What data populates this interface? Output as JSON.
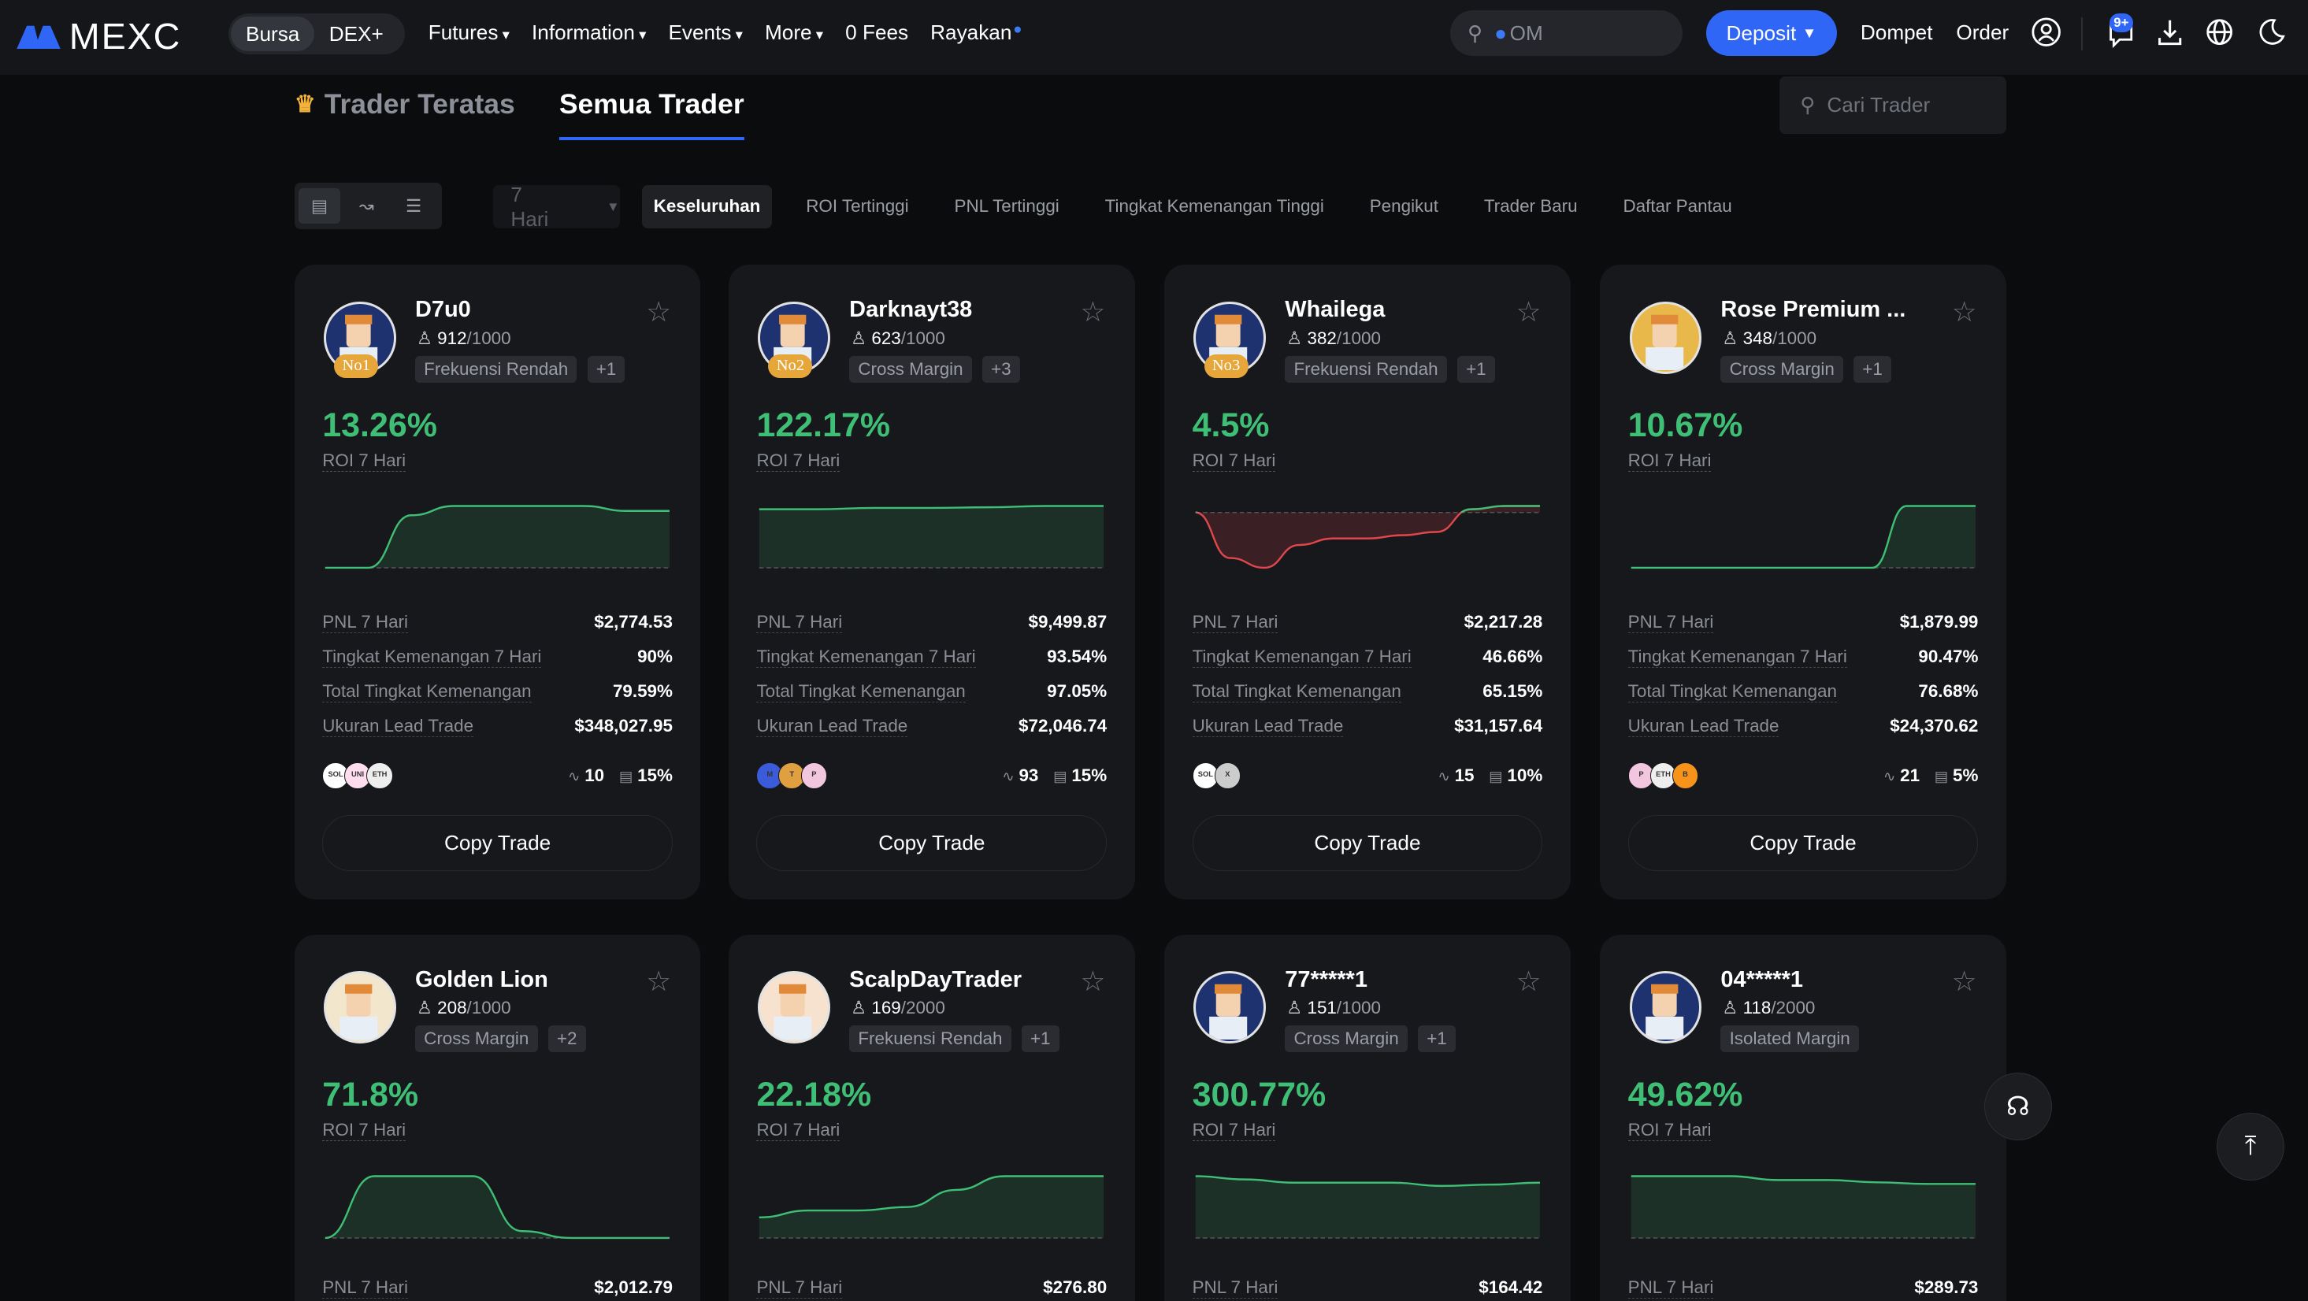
{
  "nav": {
    "logo": "MEXC",
    "seg": [
      "Bursa",
      "DEX+"
    ],
    "menu": [
      {
        "label": "Futures",
        "caret": true
      },
      {
        "label": "Information",
        "caret": true
      },
      {
        "label": "Events",
        "caret": true
      },
      {
        "label": "More",
        "caret": true
      },
      {
        "label": "0 Fees",
        "caret": false
      },
      {
        "label": "Rayakan",
        "caret": false
      }
    ],
    "search_value": "OM",
    "deposit": "Deposit",
    "wallet": "Dompet",
    "order": "Order",
    "notif_badge": "9+"
  },
  "tabs": {
    "top": "Trader Teratas",
    "all": "Semua Trader"
  },
  "search_placeholder": "Cari Trader",
  "period": "7 Hari",
  "filters": [
    "Keseluruhan",
    "ROI Tertinggi",
    "PNL Tertinggi",
    "Tingkat Kemenangan Tinggi",
    "Pengikut",
    "Trader Baru",
    "Daftar Pantau"
  ],
  "stat_labels": [
    "PNL 7 Hari",
    "Tingkat Kemenangan 7 Hari",
    "Total Tingkat Kemenangan",
    "Ukuran Lead Trade"
  ],
  "roi_label": "ROI 7 Hari",
  "copy_label": "Copy Trade",
  "colors": {
    "accent": "#2f66f5",
    "positive": "#3fbf75",
    "negative": "#e0474c"
  },
  "cards": [
    {
      "name": "D7u0",
      "rank": "No1",
      "followers": "912",
      "cap": "/1000",
      "tags": [
        "Frekuensi Rendah",
        "+1"
      ],
      "roi": "13.26%",
      "stats": [
        "$2,774.53",
        "90%",
        "79.59%",
        "$348,027.95"
      ],
      "coins": [
        "SOL",
        "UNI",
        "ETH"
      ],
      "trades": "10",
      "share": "15%",
      "spark": [
        0,
        0,
        0.85,
        1,
        1,
        1,
        1,
        0.92,
        0.92
      ]
    },
    {
      "name": "Darknayt38",
      "rank": "No2",
      "followers": "623",
      "cap": "/1000",
      "tags": [
        "Cross Margin",
        "+3"
      ],
      "roi": "122.17%",
      "stats": [
        "$9,499.87",
        "93.54%",
        "97.05%",
        "$72,046.74"
      ],
      "coins": [
        "M",
        "T",
        "P"
      ],
      "trades": "93",
      "share": "15%",
      "spark": [
        0.9,
        0.9,
        0.92,
        0.92,
        0.93,
        0.95,
        0.95
      ]
    },
    {
      "name": "Whailega",
      "rank": "No3",
      "followers": "382",
      "cap": "/1000",
      "tags": [
        "Frekuensi Rendah",
        "+1"
      ],
      "roi": "4.5%",
      "stats": [
        "$2,217.28",
        "46.66%",
        "65.15%",
        "$31,157.64"
      ],
      "coins": [
        "SOL",
        "X"
      ],
      "trades": "15",
      "share": "10%",
      "spark": [
        0,
        -0.7,
        -0.85,
        -0.5,
        -0.4,
        -0.4,
        -0.35,
        -0.3,
        0.05,
        0.1,
        0.1
      ]
    },
    {
      "name": "Rose Premium ...",
      "rank": "",
      "followers": "348",
      "cap": "/1000",
      "tags": [
        "Cross Margin",
        "+1"
      ],
      "roi": "10.67%",
      "stats": [
        "$1,879.99",
        "90.47%",
        "76.68%",
        "$24,370.62"
      ],
      "coins": [
        "P",
        "ETH",
        "B"
      ],
      "trades": "21",
      "share": "5%",
      "spark": [
        0,
        0,
        0,
        0,
        0,
        0,
        0,
        0,
        1,
        1,
        1
      ]
    },
    {
      "name": "Golden Lion",
      "rank": "",
      "followers": "208",
      "cap": "/1000",
      "tags": [
        "Cross Margin",
        "+2"
      ],
      "roi": "71.8%",
      "stats": [
        "$2,012.79"
      ],
      "spark": [
        0,
        0.9,
        0.9,
        0.9,
        0.1,
        0,
        0,
        0
      ]
    },
    {
      "name": "ScalpDayTrader",
      "rank": "",
      "followers": "169",
      "cap": "/2000",
      "tags": [
        "Frekuensi Rendah",
        "+1"
      ],
      "roi": "22.18%",
      "stats": [
        "$276.80"
      ],
      "spark": [
        0.3,
        0.4,
        0.4,
        0.45,
        0.7,
        0.9,
        0.9,
        0.9
      ]
    },
    {
      "name": "77*****1",
      "rank": "",
      "followers": "151",
      "cap": "/1000",
      "tags": [
        "Cross Margin",
        "+1"
      ],
      "roi": "300.77%",
      "stats": [
        "$164.42"
      ],
      "spark": [
        0.95,
        0.9,
        0.85,
        0.85,
        0.85,
        0.8,
        0.82,
        0.85
      ]
    },
    {
      "name": "04*****1",
      "rank": "",
      "followers": "118",
      "cap": "/2000",
      "tags": [
        "Isolated Margin"
      ],
      "roi": "49.62%",
      "stats": [
        "$289.73"
      ],
      "spark": [
        0.8,
        0.8,
        0.8,
        0.75,
        0.75,
        0.72,
        0.7,
        0.7
      ]
    }
  ]
}
